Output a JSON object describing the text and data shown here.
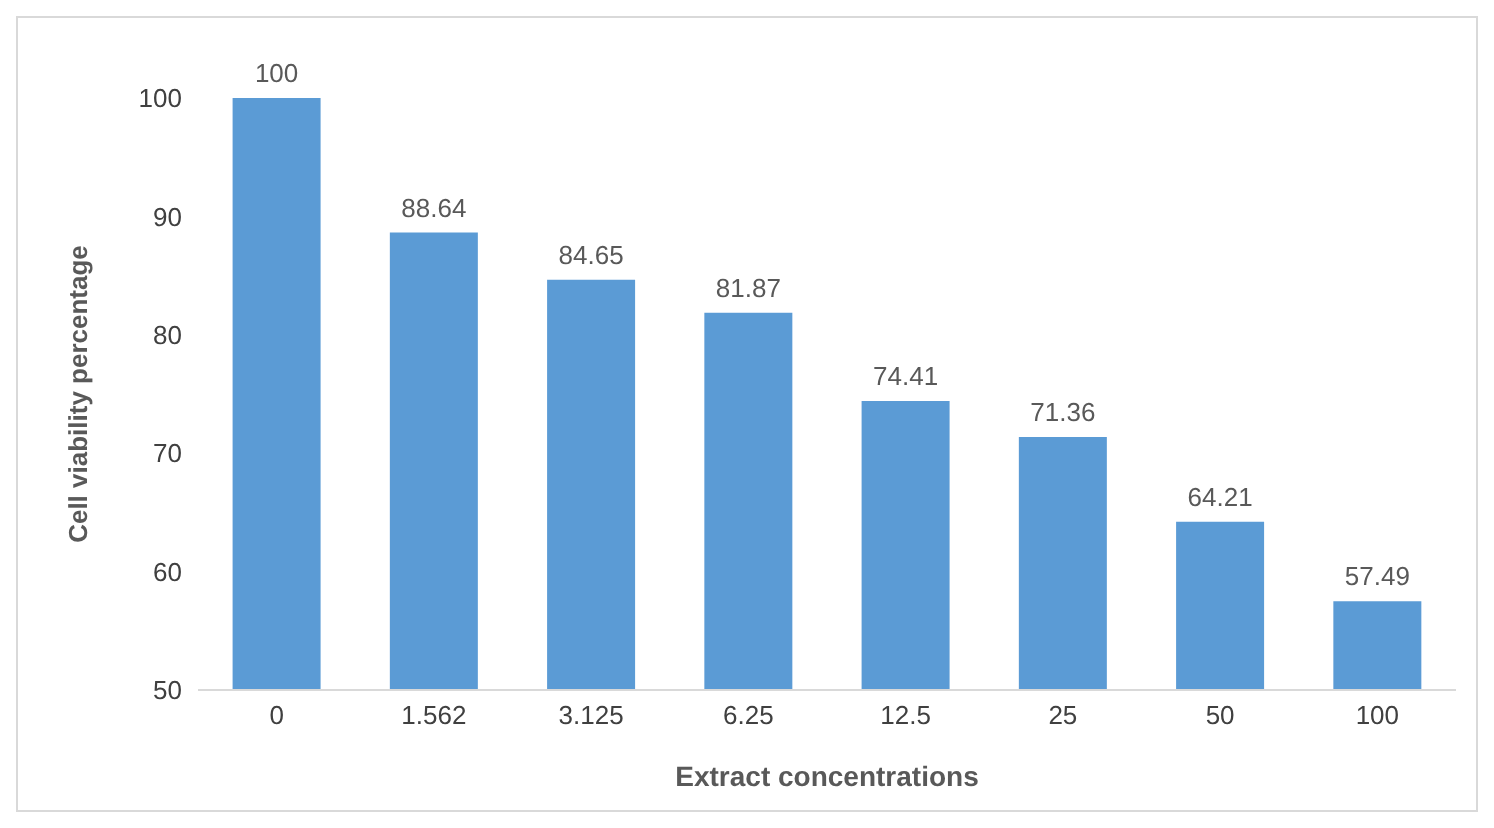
{
  "chart_data": {
    "type": "bar",
    "xlabel": "Extract concentrations",
    "ylabel": "Cell viability percentage",
    "categories": [
      "0",
      "1.562",
      "3.125",
      "6.25",
      "12.5",
      "25",
      "50",
      "100"
    ],
    "values": [
      100,
      88.64,
      84.65,
      81.87,
      74.41,
      71.36,
      64.21,
      57.49
    ],
    "color": "#5b9bd5",
    "ylim": [
      50,
      100
    ],
    "yticks": [
      50,
      60,
      70,
      80,
      90,
      100
    ],
    "grid": false,
    "data_labels": true
  }
}
